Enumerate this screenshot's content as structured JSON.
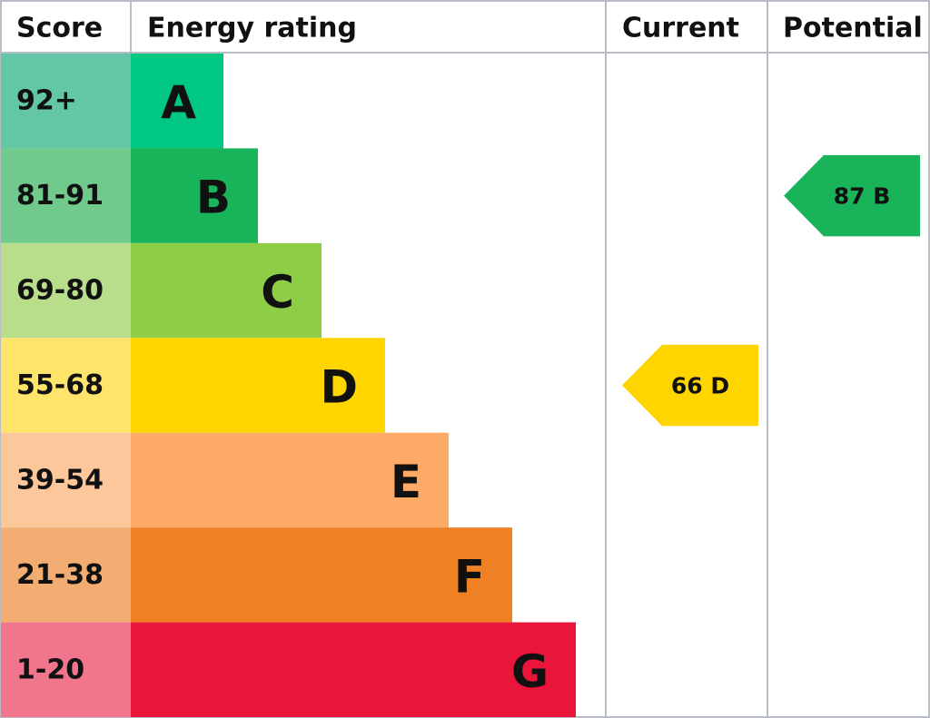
{
  "header": {
    "score": "Score",
    "rating": "Energy rating",
    "current": "Current",
    "potential": "Potential"
  },
  "bands": [
    {
      "range": "92+",
      "letter": "A",
      "color": "#00c781",
      "score_color": "#63c6a4"
    },
    {
      "range": "81-91",
      "letter": "B",
      "color": "#19b459",
      "score_color": "#70ca8b"
    },
    {
      "range": "69-80",
      "letter": "C",
      "color": "#8dce46",
      "score_color": "#b8de8b"
    },
    {
      "range": "55-68",
      "letter": "D",
      "color": "#ffd500",
      "score_color": "#ffe46b"
    },
    {
      "range": "39-54",
      "letter": "E",
      "color": "#fcaa65",
      "score_color": "#fdc79c"
    },
    {
      "range": "21-38",
      "letter": "F",
      "color": "#ef8023",
      "score_color": "#f3ad73"
    },
    {
      "range": "1-20",
      "letter": "G",
      "color": "#e9153b",
      "score_color": "#f1758c"
    }
  ],
  "current": {
    "score": 66,
    "rating": "D"
  },
  "potential": {
    "score": 87,
    "rating": "B"
  }
}
